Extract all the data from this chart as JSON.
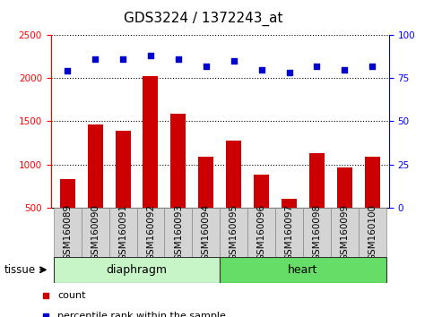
{
  "title": "GDS3224 / 1372243_at",
  "samples": [
    "GSM160089",
    "GSM160090",
    "GSM160091",
    "GSM160092",
    "GSM160093",
    "GSM160094",
    "GSM160095",
    "GSM160096",
    "GSM160097",
    "GSM160098",
    "GSM160099",
    "GSM160100"
  ],
  "counts": [
    830,
    1460,
    1390,
    2020,
    1590,
    1090,
    1280,
    880,
    600,
    1130,
    970,
    1090
  ],
  "percentiles": [
    79,
    86,
    86,
    88,
    86,
    82,
    85,
    80,
    78,
    82,
    80,
    82
  ],
  "groups": [
    {
      "label": "diaphragm",
      "start": 0,
      "end": 6
    },
    {
      "label": "heart",
      "start": 6,
      "end": 12
    }
  ],
  "ylim_left": [
    500,
    2500
  ],
  "ylim_right": [
    0,
    100
  ],
  "yticks_left": [
    500,
    1000,
    1500,
    2000,
    2500
  ],
  "yticks_right": [
    0,
    25,
    50,
    75,
    100
  ],
  "bar_color": "#cc0000",
  "dot_color": "#0000cc",
  "bar_width": 0.55,
  "title_fontsize": 11,
  "tick_fontsize": 7.5,
  "group_colors": [
    "#c8f5c8",
    "#66dd66"
  ],
  "group_text_fontsize": 9,
  "legend_fontsize": 8
}
